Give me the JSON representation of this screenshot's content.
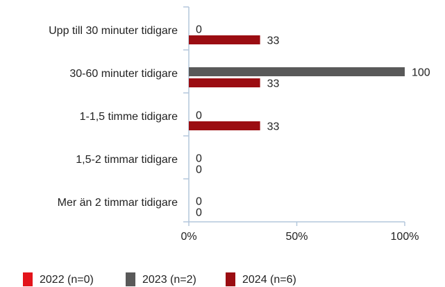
{
  "chart_data": {
    "type": "bar",
    "orientation": "horizontal",
    "categories": [
      "Upp till 30 minuter tidigare",
      "30-60 minuter tidigare",
      "1-1,5 timme tidigare",
      "1,5-2 timmar tidigare",
      "Mer än 2 timmar tidigare"
    ],
    "series": [
      {
        "name": "2022 (n=0)",
        "color": "#e3141b",
        "values": [
          null,
          null,
          null,
          null,
          null
        ]
      },
      {
        "name": "2023 (n=2)",
        "color": "#595959",
        "values": [
          0,
          100,
          0,
          0,
          0
        ]
      },
      {
        "name": "2024 (n=6)",
        "color": "#9b0d12",
        "values": [
          33,
          33,
          33,
          0,
          0
        ]
      }
    ],
    "xlim": [
      0,
      100
    ],
    "xticks": [
      {
        "value": 0,
        "label": "0%"
      },
      {
        "value": 50,
        "label": "50%"
      },
      {
        "value": 100,
        "label": "100%"
      }
    ],
    "legend": "bottom"
  }
}
